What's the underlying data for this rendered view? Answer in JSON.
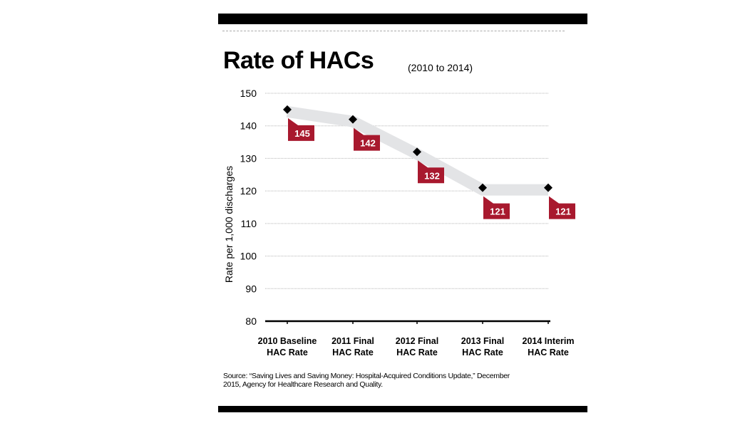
{
  "chart_data": {
    "type": "line",
    "title": "Rate of HACs",
    "subtitle": "(2010 to 2014)",
    "xlabel": "",
    "ylabel": "Rate per 1,000 discharges",
    "categories": [
      [
        "2010 Baseline",
        "HAC Rate"
      ],
      [
        "2011 Final",
        "HAC Rate"
      ],
      [
        "2012 Final",
        "HAC Rate"
      ],
      [
        "2013 Final",
        "HAC Rate"
      ],
      [
        "2014 Interim",
        "HAC Rate"
      ]
    ],
    "series": [
      {
        "name": "HAC Rate",
        "values": [
          145,
          142,
          132,
          121,
          121
        ]
      }
    ],
    "data_labels": [
      "145",
      "142",
      "132",
      "121",
      "121"
    ],
    "ylim": [
      80,
      150
    ],
    "yticks": [
      80,
      90,
      100,
      110,
      120,
      130,
      140,
      150
    ],
    "grid": true,
    "colors": {
      "band": "#e3e4e6",
      "label_box": "#a8192e",
      "marker": "#000000",
      "grid": "#b5b5b5"
    }
  },
  "source": "Source: “Saving Lives and Saving Money: Hospital-Acquired Conditions Update,” December 2015, Agency for Healthcare Research and Quality."
}
